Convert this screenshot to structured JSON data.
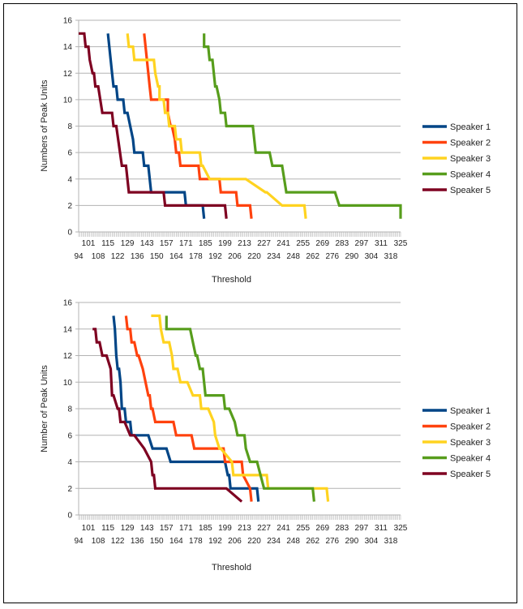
{
  "chart_data": [
    {
      "type": "line",
      "xlabel": "Threshold",
      "ylabel": "Numbers of Peak Units",
      "ylim": [
        0,
        16
      ],
      "yticks": [
        0,
        2,
        4,
        6,
        8,
        10,
        12,
        14,
        16
      ],
      "xlim": [
        94,
        325
      ],
      "xticks_top": [
        "101",
        "115",
        "129",
        "143",
        "157",
        "171",
        "185",
        "199",
        "213",
        "227",
        "241",
        "255",
        "269",
        "283",
        "297",
        "311",
        "325"
      ],
      "xticks_bottom": [
        "94",
        "108",
        "122",
        "136",
        "150",
        "164",
        "178",
        "192",
        "206",
        "220",
        "234",
        "248",
        "262",
        "276",
        "290",
        "304",
        "318"
      ],
      "legend_position": "right",
      "series": [
        {
          "name": "Speaker 1",
          "color": "#004586",
          "x": [
            115,
            116,
            117,
            118,
            119,
            121,
            122,
            126,
            127,
            129,
            131,
            133,
            134,
            140,
            141,
            144,
            146,
            170,
            171,
            171,
            183,
            184
          ],
          "y": [
            15,
            14,
            13,
            12,
            11,
            11,
            10,
            10,
            9,
            9,
            8,
            7,
            6,
            6,
            5,
            5,
            3,
            3,
            2,
            2,
            2,
            1
          ]
        },
        {
          "name": "Speaker 2",
          "color": "#ff420e",
          "x": [
            141,
            142,
            143,
            144,
            145,
            146,
            158,
            158,
            160,
            161,
            163,
            164,
            166,
            167,
            168,
            169,
            180,
            181,
            195,
            196,
            207,
            208,
            217,
            218
          ],
          "y": [
            15,
            14,
            13,
            12,
            11,
            10,
            10,
            9,
            8,
            8,
            7,
            6,
            6,
            5,
            5,
            5,
            5,
            4,
            4,
            3,
            3,
            2,
            2,
            1
          ]
        },
        {
          "name": "Speaker 3",
          "color": "#ffd320",
          "x": [
            129,
            130,
            133,
            134,
            141,
            142,
            148,
            149,
            151,
            152,
            152,
            155,
            156,
            158,
            159,
            163,
            164,
            165,
            167,
            168,
            180,
            181,
            182,
            183,
            188,
            189,
            212,
            214,
            228,
            229,
            240,
            241,
            241,
            256,
            257
          ],
          "y": [
            15,
            14,
            14,
            13,
            13,
            13,
            13,
            12,
            11,
            11,
            10,
            10,
            9,
            9,
            8,
            8,
            7,
            7,
            7,
            6,
            6,
            6,
            5,
            5,
            4,
            4,
            4,
            4,
            3,
            3,
            2,
            2,
            2,
            2,
            1
          ]
        },
        {
          "name": "Speaker 4",
          "color": "#579d1c",
          "x": [
            184,
            184,
            187,
            188,
            190,
            191,
            192,
            193,
            195,
            196,
            197,
            198,
            199,
            200,
            201,
            203,
            208,
            210,
            219,
            221,
            230,
            231,
            233,
            240,
            243,
            278,
            281,
            319,
            320,
            325,
            325
          ],
          "y": [
            15,
            14,
            14,
            13,
            13,
            12,
            11,
            11,
            10,
            9,
            9,
            9,
            9,
            8,
            8,
            8,
            8,
            8,
            8,
            6,
            6,
            6,
            5,
            5,
            3,
            3,
            2,
            2,
            2,
            2,
            1
          ]
        },
        {
          "name": "Speaker 5",
          "color": "#7e0021",
          "x": [
            94,
            98,
            99,
            101,
            102,
            104,
            105,
            106,
            107,
            108,
            111,
            112,
            118,
            119,
            121,
            125,
            128,
            130,
            133,
            144,
            148,
            155,
            156,
            164,
            185,
            186,
            199,
            200
          ],
          "y": [
            15,
            15,
            14,
            14,
            13,
            12,
            12,
            11,
            11,
            11,
            9,
            9,
            9,
            8,
            8,
            5,
            5,
            3,
            3,
            3,
            3,
            3,
            2,
            2,
            2,
            2,
            2,
            1
          ]
        }
      ]
    },
    {
      "type": "line",
      "xlabel": "Threshold",
      "ylabel": "Number of Peak Units",
      "ylim": [
        0,
        16
      ],
      "yticks": [
        0,
        2,
        4,
        6,
        8,
        10,
        12,
        14,
        16
      ],
      "xlim": [
        94,
        325
      ],
      "xticks_top": [
        "101",
        "115",
        "129",
        "143",
        "157",
        "171",
        "185",
        "199",
        "213",
        "227",
        "241",
        "255",
        "269",
        "283",
        "297",
        "311",
        "325"
      ],
      "xticks_bottom": [
        "94",
        "108",
        "122",
        "136",
        "150",
        "164",
        "178",
        "192",
        "206",
        "220",
        "234",
        "248",
        "262",
        "276",
        "290",
        "304",
        "318"
      ],
      "legend_position": "right",
      "series": [
        {
          "name": "Speaker 1",
          "color": "#004586",
          "x": [
            119,
            120,
            121,
            122,
            123,
            124,
            125,
            127,
            128,
            131,
            132,
            144,
            147,
            157,
            160,
            199,
            201,
            202,
            203,
            222,
            223
          ],
          "y": [
            15,
            14,
            12,
            11,
            11,
            10,
            8,
            8,
            7,
            7,
            6,
            6,
            5,
            5,
            4,
            4,
            3,
            3,
            2,
            2,
            1
          ]
        },
        {
          "name": "Speaker 2",
          "color": "#ff420e",
          "x": [
            128,
            129,
            131,
            132,
            134,
            136,
            137,
            140,
            142,
            144,
            145,
            146,
            147,
            149,
            150,
            151,
            152,
            162,
            164,
            175,
            177,
            184,
            185,
            198,
            199,
            211,
            212,
            217,
            218
          ],
          "y": [
            15,
            14,
            14,
            13,
            13,
            12,
            12,
            11,
            10,
            9,
            9,
            8,
            8,
            7,
            7,
            7,
            7,
            7,
            6,
            6,
            5,
            5,
            5,
            5,
            4,
            4,
            3,
            2,
            1
          ]
        },
        {
          "name": "Speaker 3",
          "color": "#ffd320",
          "x": [
            146,
            148,
            152,
            153,
            155,
            156,
            159,
            161,
            162,
            165,
            167,
            170,
            172,
            176,
            177,
            181,
            182,
            186,
            187,
            191,
            192,
            195,
            196,
            204,
            205,
            213,
            214,
            229,
            230,
            240,
            260,
            272,
            273
          ],
          "y": [
            15,
            15,
            15,
            14,
            13,
            13,
            13,
            12,
            11,
            11,
            10,
            10,
            10,
            9,
            9,
            9,
            8,
            8,
            8,
            7,
            6,
            5,
            5,
            4,
            3,
            3,
            3,
            3,
            2,
            2,
            2,
            2,
            1
          ]
        },
        {
          "name": "Speaker 4",
          "color": "#579d1c",
          "x": [
            157,
            157,
            174,
            176,
            178,
            179,
            181,
            183,
            185,
            186,
            197,
            198,
            199,
            202,
            206,
            208,
            213,
            214,
            217,
            222,
            227,
            228,
            262,
            263
          ],
          "y": [
            15,
            14,
            14,
            13,
            12,
            12,
            11,
            11,
            9,
            9,
            9,
            9,
            8,
            8,
            7,
            6,
            6,
            5,
            4,
            4,
            2,
            2,
            2,
            1
          ]
        },
        {
          "name": "Speaker 5",
          "color": "#7e0021",
          "x": [
            104,
            106,
            107,
            109,
            111,
            112,
            114,
            117,
            118,
            119,
            122,
            123,
            124,
            126,
            127,
            131,
            134,
            141,
            146,
            147,
            148,
            149,
            150,
            155,
            160,
            172,
            184,
            200,
            211
          ],
          "y": [
            14,
            14,
            13,
            13,
            12,
            12,
            12,
            11,
            9,
            9,
            8,
            8,
            7,
            7,
            7,
            6,
            6,
            5,
            4,
            3,
            3,
            2,
            2,
            2,
            2,
            2,
            2,
            2,
            1
          ]
        }
      ]
    }
  ]
}
